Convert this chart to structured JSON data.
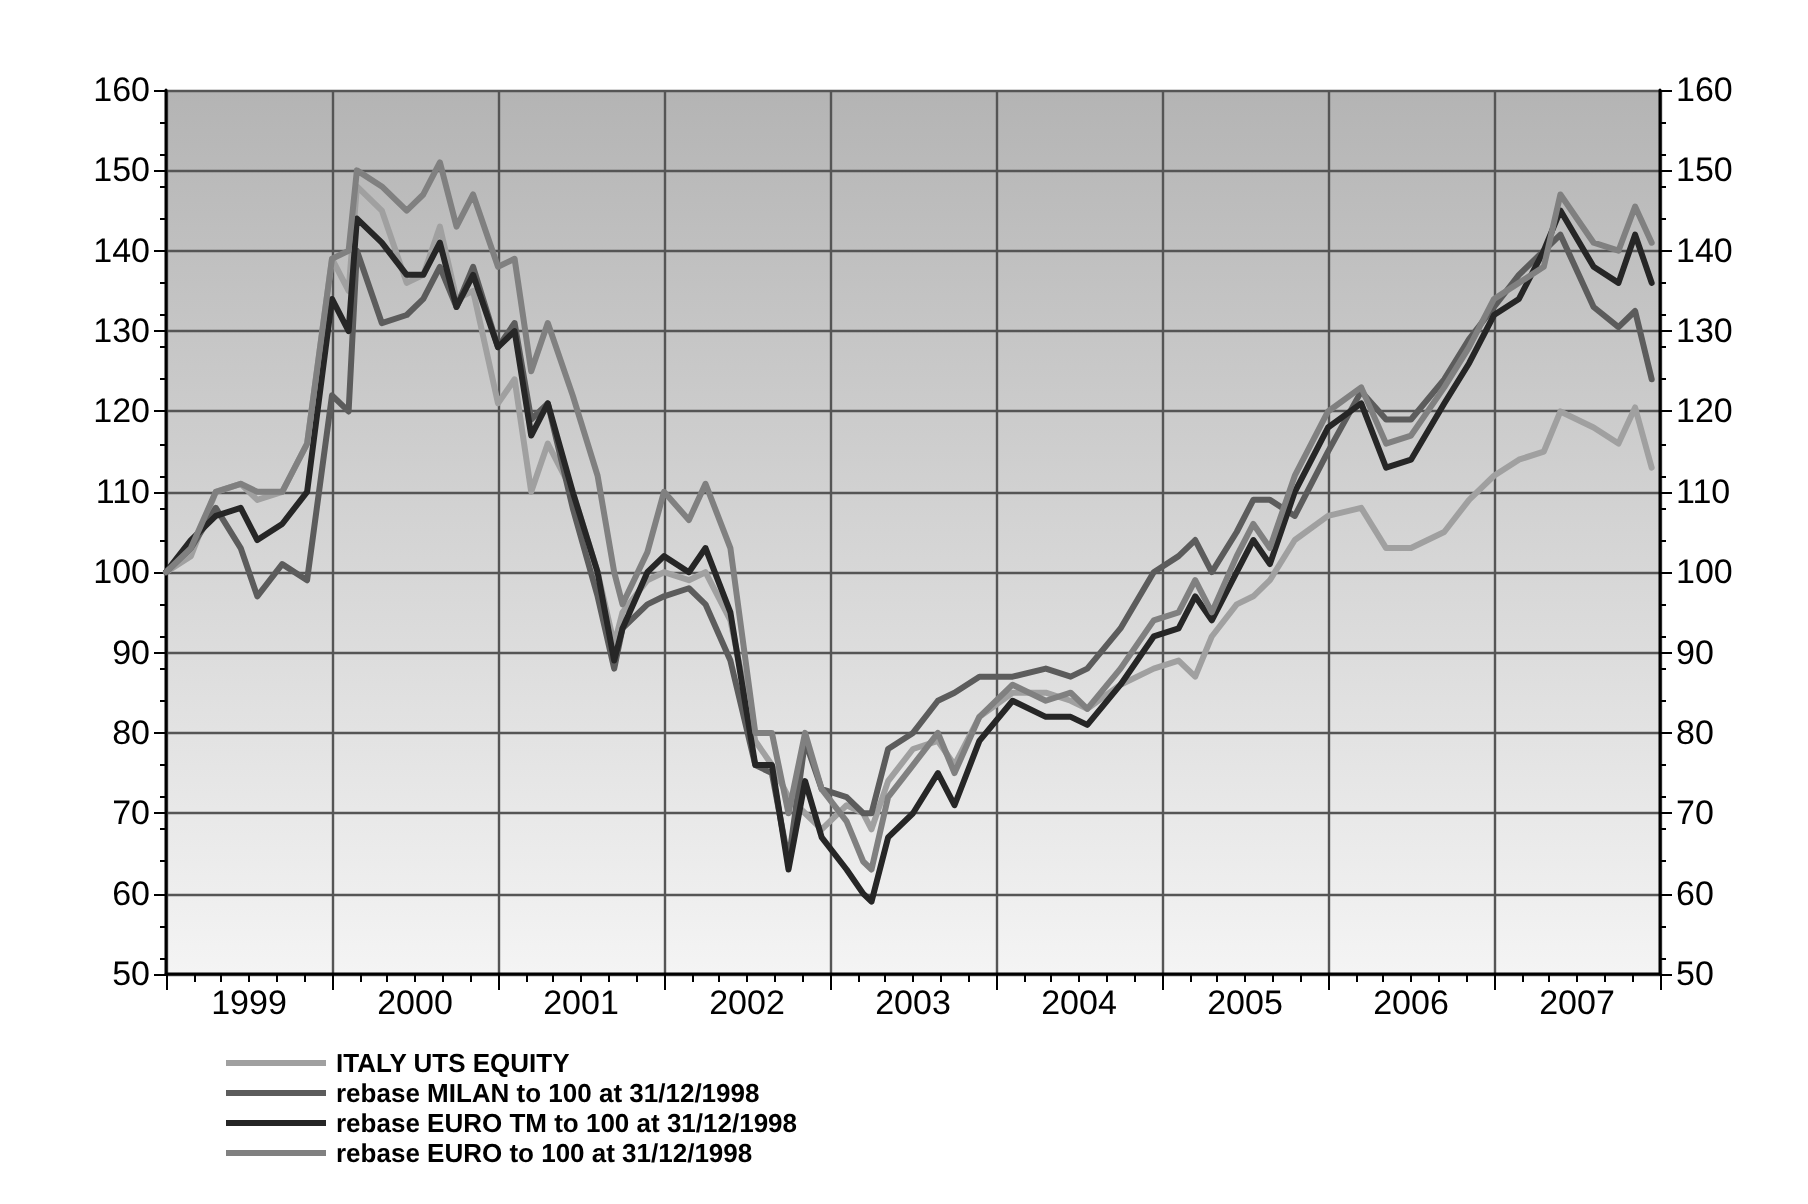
{
  "chart_data": {
    "type": "line",
    "x": [
      1999.0,
      1999.15,
      1999.3,
      1999.45,
      1999.55,
      1999.7,
      1999.85,
      2000.0,
      2000.1,
      2000.15,
      2000.3,
      2000.45,
      2000.55,
      2000.65,
      2000.75,
      2000.85,
      2001.0,
      2001.1,
      2001.2,
      2001.3,
      2001.45,
      2001.6,
      2001.7,
      2001.75,
      2001.9,
      2002.0,
      2002.15,
      2002.25,
      2002.4,
      2002.55,
      2002.65,
      2002.75,
      2002.85,
      2002.95,
      2003.1,
      2003.2,
      2003.25,
      2003.35,
      2003.5,
      2003.65,
      2003.75,
      2003.9,
      2004.1,
      2004.3,
      2004.45,
      2004.55,
      2004.75,
      2004.95,
      2005.1,
      2005.2,
      2005.3,
      2005.45,
      2005.55,
      2005.65,
      2005.8,
      2006.0,
      2006.2,
      2006.35,
      2006.5,
      2006.7,
      2006.85,
      2007.0,
      2007.15,
      2007.3,
      2007.4,
      2007.6,
      2007.75,
      2007.85,
      2007.95
    ],
    "series": [
      {
        "name": "ITALY UTS EQUITY",
        "color": "#a0a0a0",
        "values": [
          100,
          102,
          110,
          111,
          109,
          110,
          116,
          139,
          135,
          148,
          145,
          136,
          137,
          143,
          134,
          135,
          121,
          124,
          110,
          116,
          110,
          100,
          91,
          95,
          99,
          100,
          99,
          100,
          94,
          79,
          76,
          72,
          70,
          68,
          71,
          70,
          68,
          74,
          78,
          79,
          76,
          82,
          85,
          85,
          84,
          83,
          86,
          88,
          89,
          87,
          92,
          96,
          97,
          99,
          104,
          107,
          108,
          103,
          103,
          105,
          109,
          112,
          114,
          115,
          120,
          118,
          116,
          120.5,
          113
        ]
      },
      {
        "name": "rebase MILAN to 100 at 31/12/1998",
        "color": "#5c5c5c",
        "values": [
          100,
          103,
          108,
          103,
          97,
          101,
          99,
          122,
          120,
          140,
          131,
          132,
          134,
          138,
          133,
          138,
          128,
          131,
          119,
          121,
          108,
          97,
          88,
          93,
          96,
          97,
          98,
          96,
          89,
          76,
          75,
          64,
          79,
          73,
          72,
          70,
          70,
          78,
          80,
          84,
          85,
          87,
          87,
          88,
          87,
          88,
          93,
          100,
          102,
          104,
          100,
          105,
          109,
          109,
          107,
          115,
          122.5,
          119,
          119,
          124,
          129,
          133,
          137,
          140,
          142,
          133,
          130.5,
          132.5,
          124
        ]
      },
      {
        "name": "rebase EURO TM to 100 at 31/12/1998",
        "color": "#262626",
        "values": [
          100,
          104,
          107,
          108,
          104,
          106,
          110,
          134,
          130,
          144,
          141,
          137,
          137,
          141,
          133,
          137,
          128,
          130,
          117,
          121,
          110,
          100,
          89,
          93,
          100,
          102,
          100,
          103,
          95,
          76,
          76,
          63,
          74,
          67,
          63,
          60,
          59,
          67,
          70,
          75,
          71,
          79,
          84,
          82,
          82,
          81,
          86,
          92,
          93,
          97,
          94,
          100,
          104,
          101,
          110,
          118,
          121,
          113,
          114,
          121,
          126,
          132,
          134,
          140,
          145,
          138,
          136,
          142,
          136
        ]
      },
      {
        "name": "rebase EURO to 100 at 31/12/1998",
        "color": "#808080",
        "values": [
          100,
          103,
          110,
          111,
          110,
          110,
          116,
          139,
          140,
          150,
          148,
          145,
          147,
          151,
          143,
          147,
          138,
          139,
          125,
          131,
          122,
          112,
          100,
          96,
          102.5,
          110,
          106.5,
          111,
          103,
          80,
          80,
          70,
          80,
          73,
          69,
          64,
          63,
          72,
          76,
          80,
          75,
          82,
          86,
          84,
          85,
          83,
          88,
          94,
          95,
          99,
          95,
          102,
          106,
          103,
          112,
          120,
          123,
          116,
          117,
          123,
          128,
          134,
          136,
          138,
          147,
          141,
          140,
          145.5,
          141
        ]
      }
    ],
    "xlim": [
      1999,
      2008
    ],
    "xticks": [
      {
        "value": 1999,
        "label": null
      },
      {
        "value": 1999.5,
        "label": "1999"
      },
      {
        "value": 2000,
        "label": null
      },
      {
        "value": 2000.5,
        "label": "2000"
      },
      {
        "value": 2001,
        "label": null
      },
      {
        "value": 2001.5,
        "label": "2001"
      },
      {
        "value": 2002,
        "label": null
      },
      {
        "value": 2002.5,
        "label": "2002"
      },
      {
        "value": 2003,
        "label": null
      },
      {
        "value": 2003.5,
        "label": "2003"
      },
      {
        "value": 2004,
        "label": null
      },
      {
        "value": 2004.5,
        "label": "2004"
      },
      {
        "value": 2005,
        "label": null
      },
      {
        "value": 2005.5,
        "label": "2005"
      },
      {
        "value": 2006,
        "label": null
      },
      {
        "value": 2006.5,
        "label": "2006"
      },
      {
        "value": 2007,
        "label": null
      },
      {
        "value": 2007.5,
        "label": "2007"
      },
      {
        "value": 2008,
        "label": null
      }
    ],
    "ylim": [
      50,
      160
    ],
    "yticks": [
      50,
      60,
      70,
      80,
      90,
      100,
      110,
      120,
      130,
      140,
      150,
      160
    ],
    "y2lim": [
      50,
      160
    ],
    "y2ticks": [
      50,
      60,
      70,
      80,
      90,
      100,
      110,
      120,
      130,
      140,
      150,
      160
    ],
    "grid": true,
    "legend": "bottom left",
    "marker": "none",
    "line_style": "solid"
  }
}
